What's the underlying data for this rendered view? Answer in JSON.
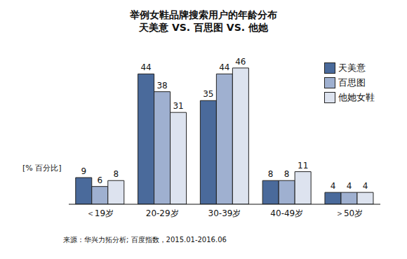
{
  "chart_data": {
    "type": "bar",
    "title": "举例女鞋品牌搜索用户的年龄分布",
    "subtitle": "天美意 VS. 百思图 VS. 他她",
    "y_label": "[% 百分比]",
    "source": "来源：华兴力拓分析; 百度指数，2015.01-2016.06",
    "categories": [
      "＜19岁",
      "20-29岁",
      "30-39岁",
      "40-49岁",
      "＞50岁"
    ],
    "series": [
      {
        "name": "天美意",
        "color": "#4a6a9b",
        "values": [
          9,
          44,
          35,
          8,
          4
        ]
      },
      {
        "name": "百思图",
        "color": "#9fb0d0",
        "values": [
          6,
          38,
          44,
          8,
          4
        ]
      },
      {
        "name": "他她女鞋",
        "color": "#dde3ef",
        "values": [
          8,
          31,
          46,
          11,
          4
        ]
      }
    ],
    "ylim": [
      0,
      50
    ],
    "data_labels": true,
    "tick_labels": "x",
    "legend": "top-right",
    "grid": false
  }
}
